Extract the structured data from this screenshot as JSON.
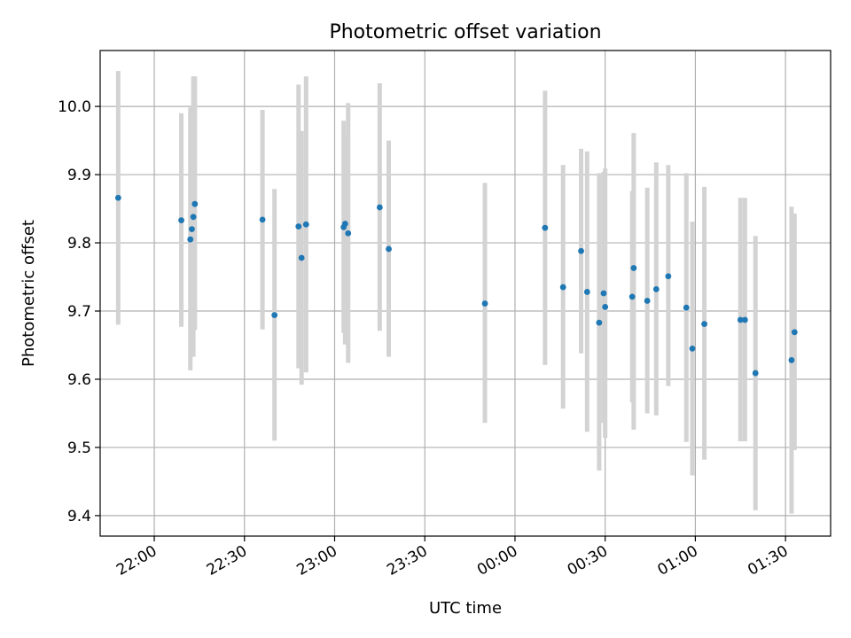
{
  "chart_data": {
    "type": "scatter",
    "title": "Photometric offset variation",
    "xlabel": "UTC time",
    "ylabel": "Photometric offset",
    "xlim": [
      "21:42",
      "01:45"
    ],
    "ylim": [
      9.37,
      10.082
    ],
    "grid": true,
    "x_ticks": [
      "22:00",
      "22:30",
      "23:00",
      "23:30",
      "00:00",
      "00:30",
      "01:00",
      "01:30"
    ],
    "y_ticks": [
      "9.4",
      "9.5",
      "9.6",
      "9.7",
      "9.8",
      "9.9",
      "10.0"
    ],
    "colors": {
      "point": "#1f77b4",
      "errorbar": "#d3d3d3"
    },
    "points": [
      {
        "x": "21:48:00",
        "y": 9.866,
        "ylo": 9.68,
        "yhi": 10.052
      },
      {
        "x": "22:09:00",
        "y": 9.833,
        "ylo": 9.677,
        "yhi": 9.99
      },
      {
        "x": "22:12:00",
        "y": 9.805,
        "ylo": 9.613,
        "yhi": 9.998
      },
      {
        "x": "22:12:30",
        "y": 9.82,
        "ylo": 9.633,
        "yhi": 10.0
      },
      {
        "x": "22:13:00",
        "y": 9.838,
        "ylo": 9.633,
        "yhi": 10.044
      },
      {
        "x": "22:13:30",
        "y": 9.857,
        "ylo": 9.672,
        "yhi": 10.044
      },
      {
        "x": "22:36:00",
        "y": 9.834,
        "ylo": 9.673,
        "yhi": 9.995
      },
      {
        "x": "22:40:00",
        "y": 9.694,
        "ylo": 9.51,
        "yhi": 9.879
      },
      {
        "x": "22:48:00",
        "y": 9.824,
        "ylo": 9.616,
        "yhi": 10.032
      },
      {
        "x": "22:49:00",
        "y": 9.778,
        "ylo": 9.592,
        "yhi": 9.964
      },
      {
        "x": "22:50:30",
        "y": 9.827,
        "ylo": 9.61,
        "yhi": 10.044
      },
      {
        "x": "23:03:00",
        "y": 9.823,
        "ylo": 9.668,
        "yhi": 9.979
      },
      {
        "x": "23:03:30",
        "y": 9.828,
        "ylo": 9.651,
        "yhi": 9.96
      },
      {
        "x": "23:04:30",
        "y": 9.814,
        "ylo": 9.624,
        "yhi": 10.005
      },
      {
        "x": "23:15:00",
        "y": 9.852,
        "ylo": 9.671,
        "yhi": 10.034
      },
      {
        "x": "23:18:00",
        "y": 9.791,
        "ylo": 9.633,
        "yhi": 9.95
      },
      {
        "x": "23:50:00",
        "y": 9.711,
        "ylo": 9.536,
        "yhi": 9.888
      },
      {
        "x": "00:10:00",
        "y": 9.822,
        "ylo": 9.621,
        "yhi": 10.023
      },
      {
        "x": "00:16:00",
        "y": 9.735,
        "ylo": 9.557,
        "yhi": 9.914
      },
      {
        "x": "00:22:00",
        "y": 9.788,
        "ylo": 9.638,
        "yhi": 9.938
      },
      {
        "x": "00:24:00",
        "y": 9.728,
        "ylo": 9.523,
        "yhi": 9.934
      },
      {
        "x": "00:28:00",
        "y": 9.683,
        "ylo": 9.466,
        "yhi": 9.902
      },
      {
        "x": "00:29:30",
        "y": 9.726,
        "ylo": 9.536,
        "yhi": 9.904
      },
      {
        "x": "00:30:00",
        "y": 9.706,
        "ylo": 9.514,
        "yhi": 9.909
      },
      {
        "x": "00:39:00",
        "y": 9.721,
        "ylo": 9.566,
        "yhi": 9.876
      },
      {
        "x": "00:39:30",
        "y": 9.763,
        "ylo": 9.526,
        "yhi": 9.961
      },
      {
        "x": "00:44:00",
        "y": 9.715,
        "ylo": 9.55,
        "yhi": 9.881
      },
      {
        "x": "00:47:00",
        "y": 9.732,
        "ylo": 9.547,
        "yhi": 9.918
      },
      {
        "x": "00:51:00",
        "y": 9.751,
        "ylo": 9.59,
        "yhi": 9.914
      },
      {
        "x": "00:57:00",
        "y": 9.705,
        "ylo": 9.508,
        "yhi": 9.902
      },
      {
        "x": "00:59:00",
        "y": 9.645,
        "ylo": 9.459,
        "yhi": 9.831
      },
      {
        "x": "01:03:00",
        "y": 9.681,
        "ylo": 9.482,
        "yhi": 9.882
      },
      {
        "x": "01:15:00",
        "y": 9.687,
        "ylo": 9.509,
        "yhi": 9.866
      },
      {
        "x": "01:16:30",
        "y": 9.687,
        "ylo": 9.509,
        "yhi": 9.866
      },
      {
        "x": "01:20:00",
        "y": 9.609,
        "ylo": 9.408,
        "yhi": 9.81
      },
      {
        "x": "01:32:00",
        "y": 9.628,
        "ylo": 9.403,
        "yhi": 9.853
      },
      {
        "x": "01:33:00",
        "y": 9.669,
        "ylo": 9.496,
        "yhi": 9.843
      }
    ]
  }
}
